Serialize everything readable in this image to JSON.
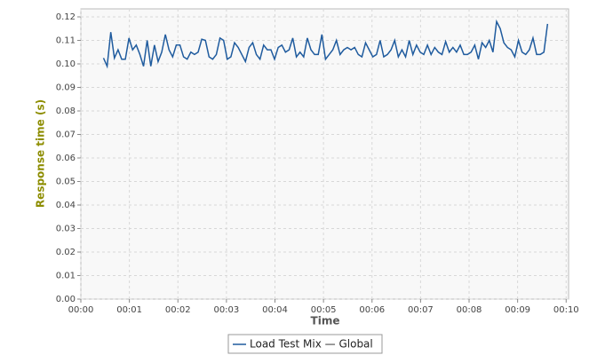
{
  "chart_data": {
    "type": "line",
    "x_label": "Time",
    "y_label": "Response time (s)",
    "xlim": [
      0,
      603
    ],
    "ylim": [
      0,
      0.1234
    ],
    "xticks": [
      {
        "value": 0,
        "label": "00:00"
      },
      {
        "value": 60,
        "label": "00:01"
      },
      {
        "value": 120,
        "label": "00:02"
      },
      {
        "value": 180,
        "label": "00:03"
      },
      {
        "value": 240,
        "label": "00:04"
      },
      {
        "value": 300,
        "label": "00:05"
      },
      {
        "value": 360,
        "label": "00:06"
      },
      {
        "value": 420,
        "label": "00:07"
      },
      {
        "value": 480,
        "label": "00:08"
      },
      {
        "value": 540,
        "label": "00:09"
      },
      {
        "value": 600,
        "label": "00:10"
      }
    ],
    "yticks": [
      {
        "value": 0,
        "label": "0.00"
      },
      {
        "value": 0.01,
        "label": "0.01"
      },
      {
        "value": 0.02,
        "label": "0.02"
      },
      {
        "value": 0.03,
        "label": "0.03"
      },
      {
        "value": 0.04,
        "label": "0.04"
      },
      {
        "value": 0.05,
        "label": "0.05"
      },
      {
        "value": 0.06,
        "label": "0.06"
      },
      {
        "value": 0.07,
        "label": "0.07"
      },
      {
        "value": 0.08,
        "label": "0.08"
      },
      {
        "value": 0.09,
        "label": "0.09"
      },
      {
        "value": 0.1,
        "label": "0.10"
      },
      {
        "value": 0.11,
        "label": "0.11"
      },
      {
        "value": 0.12,
        "label": "0.12"
      }
    ],
    "grid": true,
    "legend": "bottom",
    "x": [
      28,
      32.5,
      37,
      41.5,
      46,
      50.5,
      55,
      59.5,
      64,
      68.5,
      73,
      77.5,
      82,
      86.5,
      91,
      95.5,
      100,
      104.5,
      109,
      113.5,
      118,
      122.5,
      127,
      131.5,
      136,
      140.5,
      145,
      149.5,
      154,
      158.5,
      163,
      167.5,
      172,
      176.5,
      181,
      185.5,
      190,
      194.5,
      199,
      203.5,
      208,
      212.5,
      217,
      221.5,
      226,
      230.5,
      235,
      239.5,
      244,
      248.5,
      253,
      257.5,
      262,
      266.5,
      271,
      275.5,
      280,
      284.5,
      289,
      293.5,
      298,
      302.5,
      307,
      311.5,
      316,
      320.5,
      325,
      329.5,
      334,
      338.5,
      343,
      347.5,
      352,
      356.5,
      361,
      365.5,
      370,
      374.5,
      379,
      383.5,
      388,
      392.5,
      397,
      401.5,
      406,
      410.5,
      415,
      419.5,
      424,
      428.5,
      433,
      437.5,
      442,
      446.5,
      451,
      455.5,
      460,
      464.5,
      469,
      473.5,
      478,
      482.5,
      487,
      491.5,
      496,
      500.5,
      505,
      509.5,
      514,
      518.5,
      523,
      527.5,
      532,
      536.5,
      541,
      545.5,
      550,
      554.5,
      559,
      563.5,
      568,
      572.5,
      577
    ],
    "series": [
      {
        "name": "Load Test Mix — Global",
        "color": "#1f5b9e",
        "values": [
          0.1025,
          0.099,
          0.1135,
          0.1025,
          0.106,
          0.102,
          0.102,
          0.111,
          0.106,
          0.108,
          0.104,
          0.099,
          0.11,
          0.099,
          0.108,
          0.101,
          0.105,
          0.1125,
          0.106,
          0.103,
          0.108,
          0.108,
          0.103,
          0.102,
          0.105,
          0.104,
          0.105,
          0.1105,
          0.11,
          0.103,
          0.102,
          0.104,
          0.111,
          0.11,
          0.102,
          0.103,
          0.109,
          0.107,
          0.104,
          0.101,
          0.107,
          0.109,
          0.104,
          0.102,
          0.108,
          0.106,
          0.106,
          0.102,
          0.107,
          0.108,
          0.105,
          0.106,
          0.111,
          0.103,
          0.105,
          0.103,
          0.111,
          0.106,
          0.104,
          0.104,
          0.1125,
          0.102,
          0.104,
          0.106,
          0.11,
          0.104,
          0.106,
          0.107,
          0.106,
          0.107,
          0.104,
          0.103,
          0.109,
          0.106,
          0.103,
          0.104,
          0.11,
          0.103,
          0.104,
          0.106,
          0.11,
          0.103,
          0.106,
          0.103,
          0.11,
          0.104,
          0.108,
          0.105,
          0.104,
          0.108,
          0.104,
          0.107,
          0.105,
          0.104,
          0.1095,
          0.105,
          0.107,
          0.105,
          0.108,
          0.104,
          0.104,
          0.105,
          0.108,
          0.102,
          0.109,
          0.107,
          0.11,
          0.105,
          0.118,
          0.115,
          0.109,
          0.107,
          0.106,
          0.103,
          0.11,
          0.105,
          0.104,
          0.106,
          0.111,
          0.104,
          0.104,
          0.105,
          0.117
        ]
      }
    ]
  }
}
